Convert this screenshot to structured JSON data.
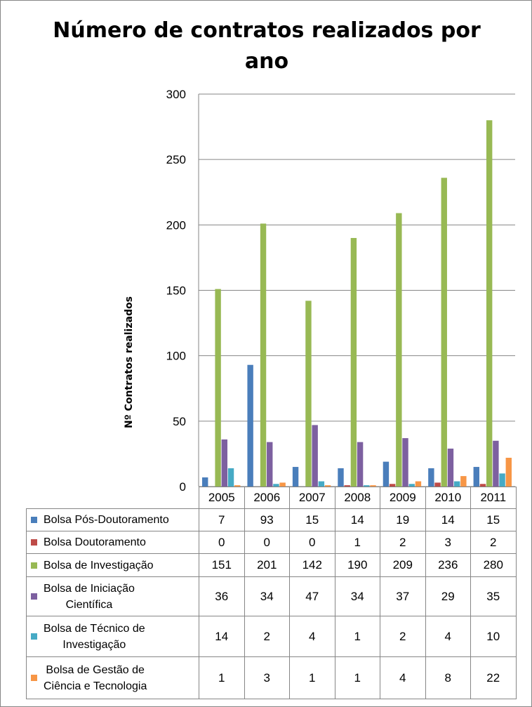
{
  "chart_data": {
    "type": "bar",
    "title": "Número de contratos realizados por\nano",
    "ylabel": "Nº Contratos realizados",
    "xlabel": "",
    "ylim": [
      0,
      300
    ],
    "yticks": [
      0,
      50,
      100,
      150,
      200,
      250,
      300
    ],
    "grid": true,
    "legend": "data-table",
    "categories": [
      "2005",
      "2006",
      "2007",
      "2008",
      "2009",
      "2010",
      "2011"
    ],
    "series": [
      {
        "name": "Bolsa Pós-Doutoramento",
        "color": "#4a7ebb",
        "values": [
          7,
          93,
          15,
          14,
          19,
          14,
          15
        ]
      },
      {
        "name": "Bolsa Doutoramento",
        "color": "#be4b48",
        "values": [
          0,
          0,
          0,
          1,
          2,
          3,
          2
        ]
      },
      {
        "name": "Bolsa de Investigação",
        "color": "#98b954",
        "values": [
          151,
          201,
          142,
          190,
          209,
          236,
          280
        ]
      },
      {
        "name": "Bolsa de Iniciação\nCientífica",
        "color": "#7d60a0",
        "values": [
          36,
          34,
          47,
          34,
          37,
          29,
          35
        ]
      },
      {
        "name": "Bolsa de Técnico de\nInvestigação",
        "color": "#46aac5",
        "values": [
          14,
          2,
          4,
          1,
          2,
          4,
          10
        ]
      },
      {
        "name": "Bolsa de Gestão de\nCiência e Tecnologia",
        "color": "#f79646",
        "values": [
          1,
          3,
          1,
          1,
          4,
          8,
          22
        ]
      }
    ]
  }
}
